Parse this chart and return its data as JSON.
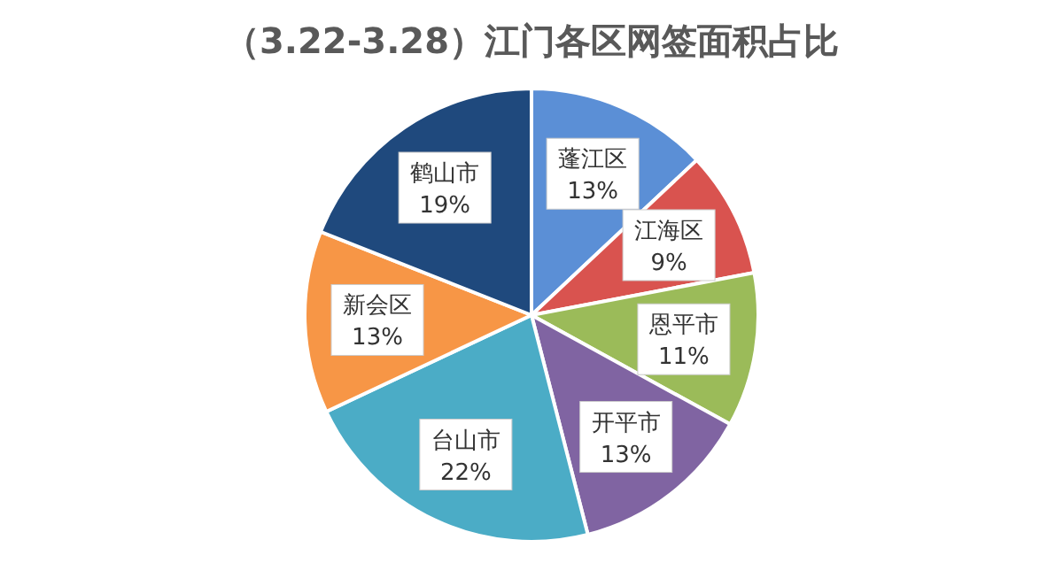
{
  "chart_data": {
    "type": "pie",
    "title": "（3.22-3.28）江门各区网签面积占比",
    "categories": [
      "蓬江区",
      "江海区",
      "恩平市",
      "开平市",
      "台山市",
      "新会区",
      "鹤山市"
    ],
    "values": [
      13,
      9,
      11,
      13,
      22,
      13,
      19
    ],
    "colors": [
      "#5b8fd6",
      "#d9534f",
      "#9bbb59",
      "#8064a2",
      "#4bacc6",
      "#f79646",
      "#1f497d"
    ],
    "value_labels": [
      "13%",
      "9%",
      "11%",
      "13%",
      "22%",
      "13%",
      "19%"
    ]
  }
}
